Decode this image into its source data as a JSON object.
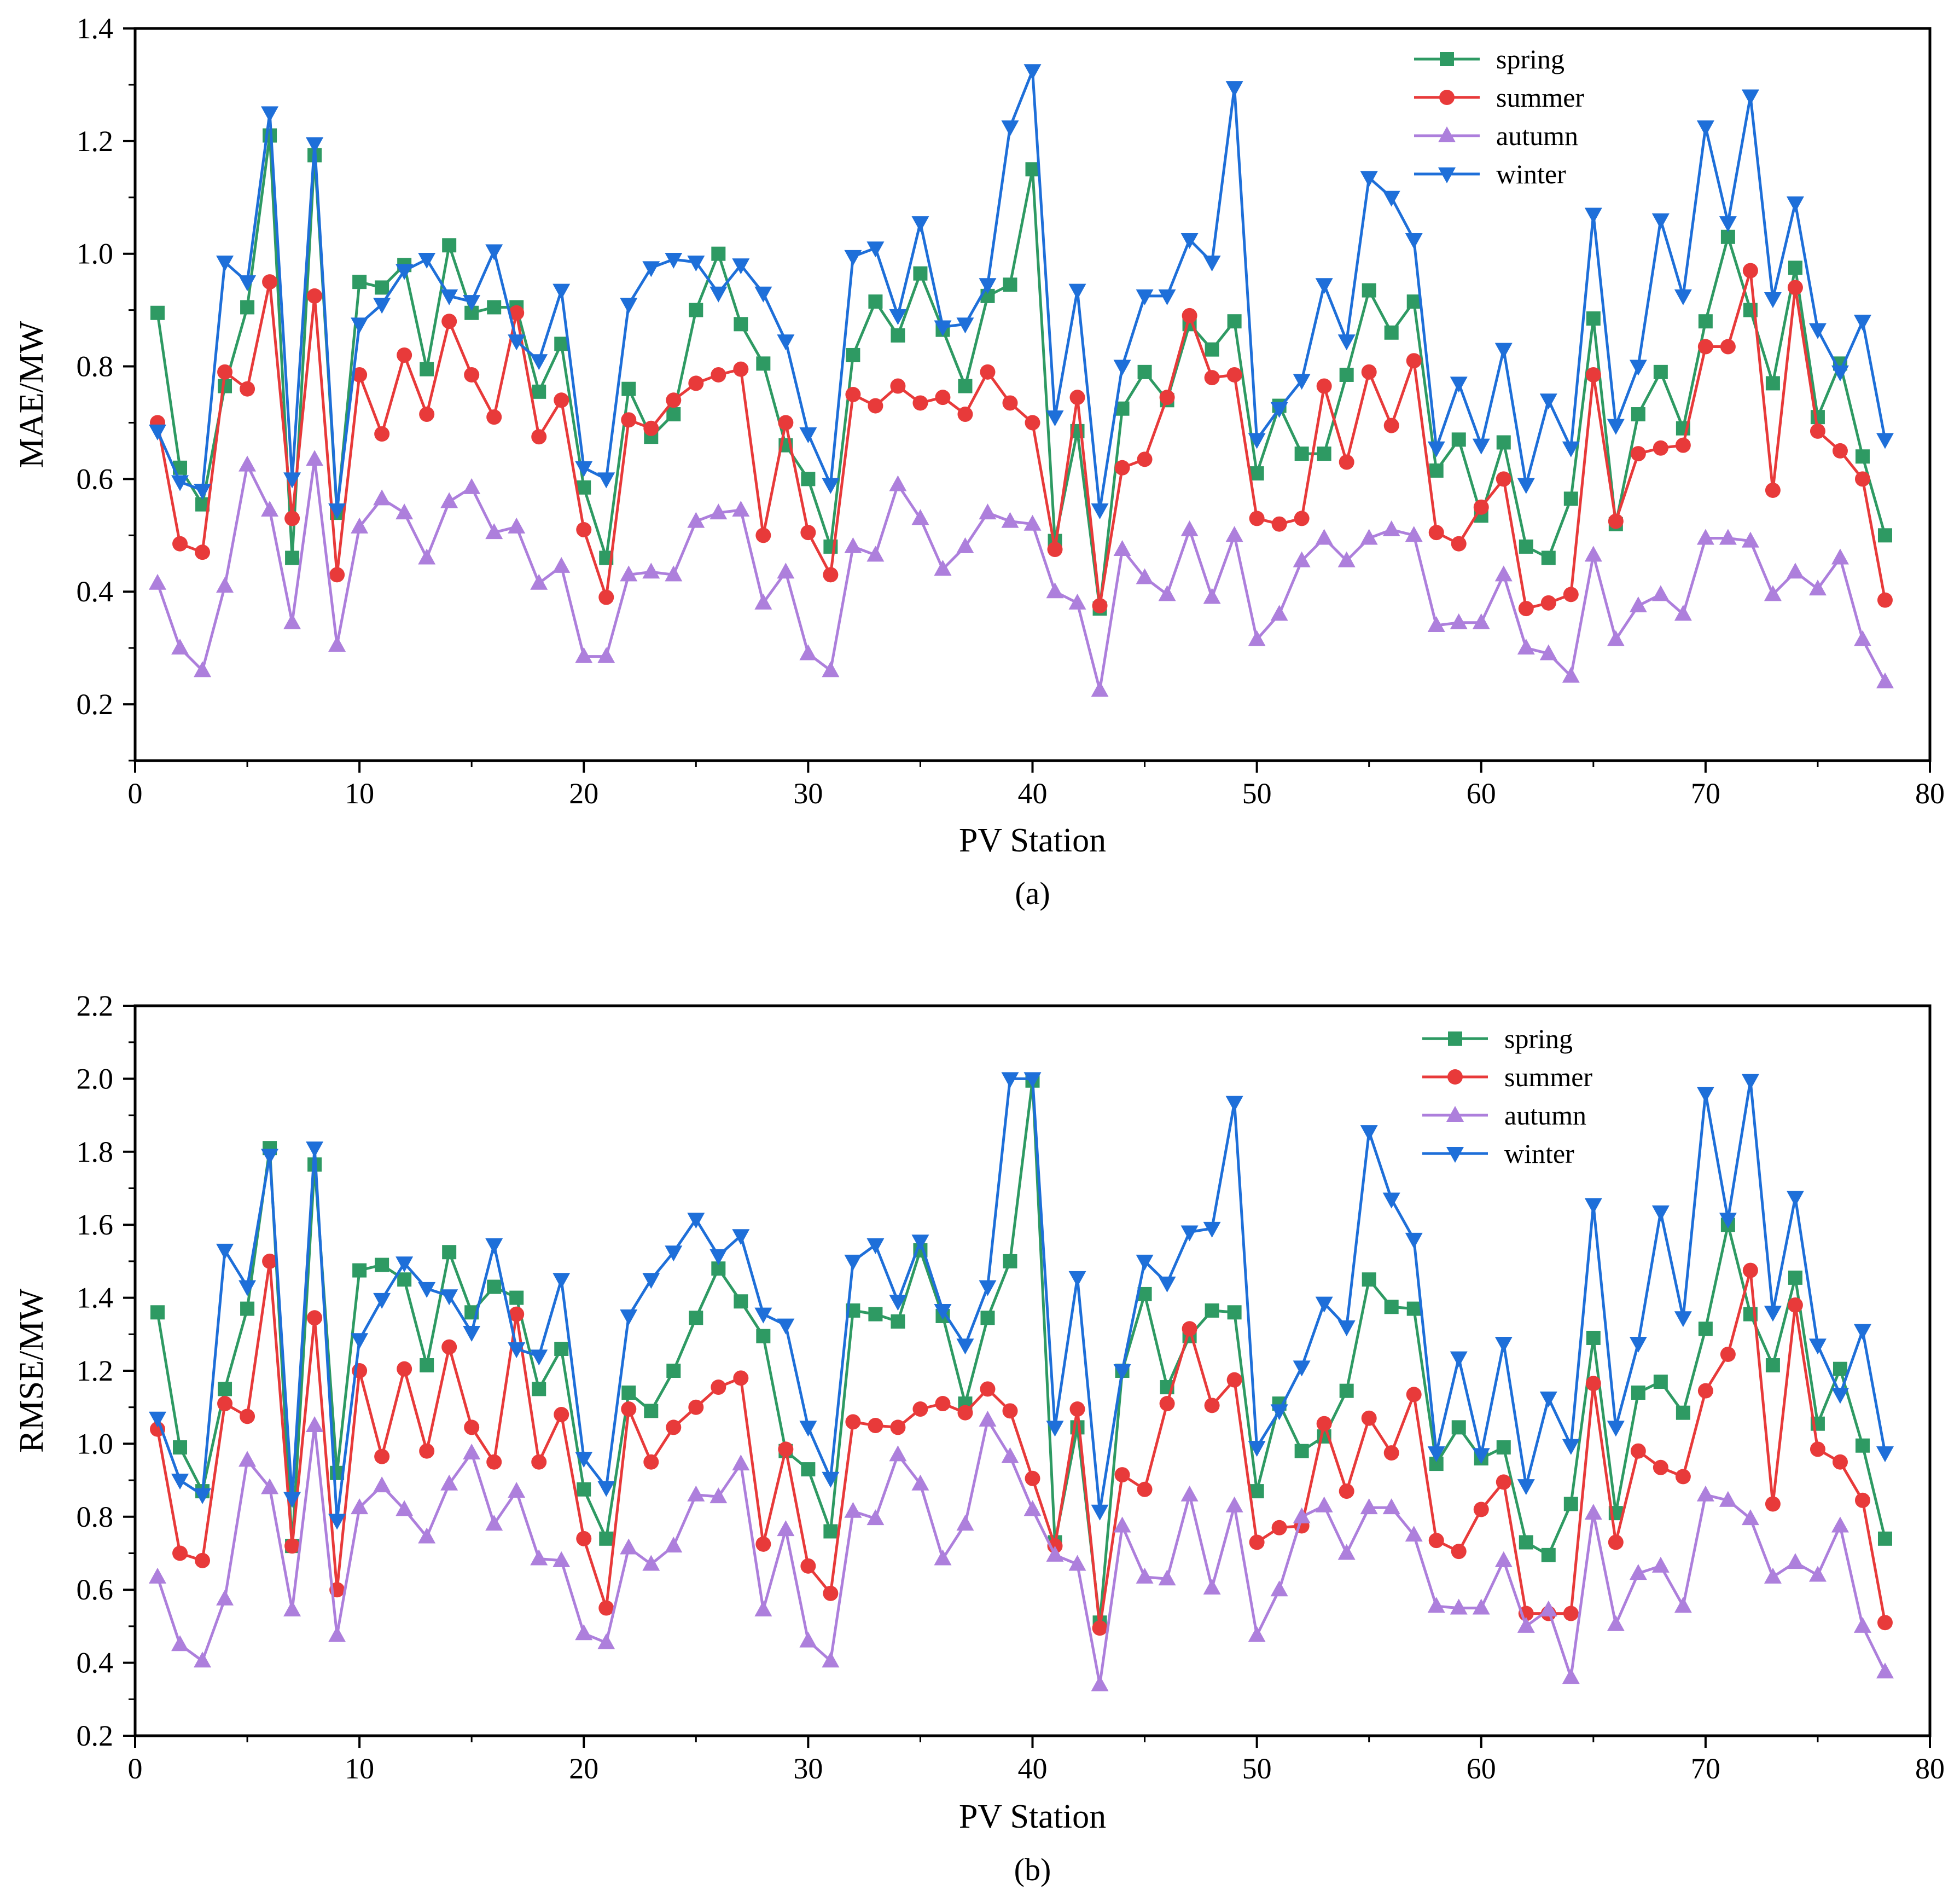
{
  "colors": {
    "spring": "#2e9a63",
    "summer": "#e83a3a",
    "autumn": "#ad7fdc",
    "winter": "#1e6fd9"
  },
  "chart_data": [
    {
      "id": "a",
      "type": "line",
      "caption": "(a)",
      "xlabel": "PV Station",
      "ylabel": "MAE/MW",
      "xlim": [
        0,
        80
      ],
      "ylim": [
        0.1,
        1.4
      ],
      "xticks": [
        0,
        10,
        20,
        30,
        40,
        50,
        60,
        70,
        80
      ],
      "yticks": [
        0.2,
        0.4,
        0.6,
        0.8,
        1.0,
        1.2,
        1.4
      ],
      "ytick_labels": [
        "0.2",
        "0.4",
        "0.6",
        "0.8",
        "1.0",
        "1.2",
        "1.4"
      ],
      "legend_position": "top-right",
      "series": [
        {
          "name": "spring",
          "marker": "square",
          "values": [
            0.895,
            0.62,
            0.555,
            0.765,
            0.905,
            1.21,
            0.46,
            1.175,
            0.54,
            0.95,
            0.94,
            0.98,
            0.795,
            1.015,
            0.895,
            0.905,
            0.905,
            0.755,
            0.84,
            0.585,
            0.46,
            0.76,
            0.675,
            0.715,
            0.9,
            1.0,
            0.875,
            0.805,
            0.66,
            0.6,
            0.48,
            0.82,
            0.915,
            0.855,
            0.965,
            0.865,
            0.765,
            0.925,
            0.945,
            1.15,
            0.49,
            0.685,
            0.37,
            0.725,
            0.79,
            0.74,
            0.875,
            0.83,
            0.88,
            0.61,
            0.73,
            0.645,
            0.645,
            0.785,
            0.935,
            0.86,
            0.915,
            0.615,
            0.67,
            0.535,
            0.665,
            0.48,
            0.46,
            0.565,
            0.885,
            0.52,
            0.715,
            0.79,
            0.69,
            0.88,
            1.03,
            0.9,
            0.77,
            0.975,
            0.71,
            0.805,
            0.64,
            0.5
          ]
        },
        {
          "name": "summer",
          "marker": "circle",
          "values": [
            0.7,
            0.485,
            0.47,
            0.79,
            0.76,
            0.95,
            0.53,
            0.925,
            0.43,
            0.785,
            0.68,
            0.82,
            0.715,
            0.88,
            0.785,
            0.71,
            0.895,
            0.675,
            0.74,
            0.51,
            0.39,
            0.705,
            0.69,
            0.74,
            0.77,
            0.785,
            0.795,
            0.5,
            0.7,
            0.505,
            0.43,
            0.75,
            0.73,
            0.765,
            0.735,
            0.745,
            0.715,
            0.79,
            0.735,
            0.7,
            0.475,
            0.745,
            0.375,
            0.62,
            0.635,
            0.745,
            0.89,
            0.78,
            0.785,
            0.53,
            0.52,
            0.53,
            0.765,
            0.63,
            0.79,
            0.695,
            0.81,
            0.505,
            0.485,
            0.55,
            0.6,
            0.37,
            0.38,
            0.395,
            0.785,
            0.525,
            0.645,
            0.655,
            0.66,
            0.835,
            0.835,
            0.97,
            0.58,
            0.94,
            0.685,
            0.65,
            0.6,
            0.385
          ]
        },
        {
          "name": "autumn",
          "marker": "triangle-up",
          "values": [
            0.415,
            0.3,
            0.26,
            0.41,
            0.625,
            0.545,
            0.345,
            0.635,
            0.305,
            0.515,
            0.565,
            0.54,
            0.46,
            0.56,
            0.585,
            0.505,
            0.515,
            0.415,
            0.445,
            0.285,
            0.285,
            0.43,
            0.435,
            0.43,
            0.525,
            0.54,
            0.545,
            0.38,
            0.435,
            0.29,
            0.26,
            0.48,
            0.465,
            0.59,
            0.53,
            0.44,
            0.48,
            0.54,
            0.525,
            0.52,
            0.4,
            0.38,
            0.225,
            0.475,
            0.425,
            0.395,
            0.51,
            0.39,
            0.5,
            0.315,
            0.36,
            0.455,
            0.495,
            0.455,
            0.495,
            0.51,
            0.5,
            0.34,
            0.345,
            0.345,
            0.43,
            0.3,
            0.29,
            0.25,
            0.465,
            0.315,
            0.375,
            0.395,
            0.36,
            0.495,
            0.495,
            0.49,
            0.395,
            0.435,
            0.405,
            0.46,
            0.315,
            0.24
          ]
        },
        {
          "name": "winter",
          "marker": "triangle-down",
          "values": [
            0.685,
            0.595,
            0.58,
            0.985,
            0.95,
            1.25,
            0.6,
            1.195,
            0.545,
            0.875,
            0.91,
            0.97,
            0.99,
            0.925,
            0.915,
            1.005,
            0.845,
            0.81,
            0.935,
            0.62,
            0.6,
            0.91,
            0.975,
            0.99,
            0.985,
            0.93,
            0.98,
            0.93,
            0.845,
            0.68,
            0.59,
            0.995,
            1.01,
            0.89,
            1.055,
            0.87,
            0.875,
            0.945,
            1.225,
            1.325,
            0.71,
            0.935,
            0.545,
            0.8,
            0.925,
            0.925,
            1.025,
            0.985,
            1.295,
            0.67,
            0.725,
            0.775,
            0.945,
            0.845,
            1.135,
            1.1,
            1.025,
            0.655,
            0.77,
            0.66,
            0.83,
            0.59,
            0.74,
            0.655,
            1.07,
            0.695,
            0.8,
            1.06,
            0.925,
            1.225,
            1.055,
            1.28,
            0.92,
            1.09,
            0.865,
            0.79,
            0.88,
            0.67
          ]
        }
      ]
    },
    {
      "id": "b",
      "type": "line",
      "caption": "(b)",
      "xlabel": "PV Station",
      "ylabel": "RMSE/MW",
      "xlim": [
        0,
        80
      ],
      "ylim": [
        0.2,
        2.2
      ],
      "xticks": [
        0,
        10,
        20,
        30,
        40,
        50,
        60,
        70,
        80
      ],
      "yticks": [
        0.2,
        0.4,
        0.6,
        0.8,
        1.0,
        1.2,
        1.4,
        1.6,
        1.8,
        2.0,
        2.2
      ],
      "ytick_labels": [
        "0.2",
        "0.4",
        "0.6",
        "0.8",
        "1.0",
        "1.2",
        "1.4",
        "1.6",
        "1.8",
        "2.0",
        "2.2"
      ],
      "legend_position": "top-right",
      "series": [
        {
          "name": "spring",
          "marker": "square",
          "values": [
            1.36,
            0.99,
            0.87,
            1.15,
            1.37,
            1.81,
            0.72,
            1.765,
            0.92,
            1.475,
            1.49,
            1.45,
            1.215,
            1.525,
            1.36,
            1.43,
            1.4,
            1.15,
            1.26,
            0.875,
            0.74,
            1.14,
            1.09,
            1.2,
            1.345,
            1.48,
            1.39,
            1.295,
            0.98,
            0.93,
            0.76,
            1.365,
            1.355,
            1.335,
            1.53,
            1.35,
            1.11,
            1.345,
            1.5,
            1.995,
            0.73,
            1.045,
            0.51,
            1.2,
            1.41,
            1.155,
            1.295,
            1.365,
            1.36,
            0.87,
            1.11,
            0.98,
            1.02,
            1.145,
            1.45,
            1.375,
            1.37,
            0.945,
            1.045,
            0.96,
            0.99,
            0.73,
            0.695,
            0.835,
            1.29,
            0.81,
            1.14,
            1.17,
            1.085,
            1.315,
            1.6,
            1.355,
            1.215,
            1.455,
            1.055,
            1.205,
            0.995,
            0.74
          ]
        },
        {
          "name": "summer",
          "marker": "circle",
          "values": [
            1.04,
            0.7,
            0.68,
            1.11,
            1.075,
            1.5,
            0.72,
            1.345,
            0.6,
            1.2,
            0.965,
            1.205,
            0.98,
            1.265,
            1.045,
            0.95,
            1.355,
            0.95,
            1.08,
            0.74,
            0.55,
            1.095,
            0.95,
            1.045,
            1.1,
            1.155,
            1.18,
            0.725,
            0.985,
            0.665,
            0.59,
            1.06,
            1.05,
            1.045,
            1.095,
            1.11,
            1.085,
            1.15,
            1.09,
            0.905,
            0.72,
            1.095,
            0.495,
            0.915,
            0.875,
            1.11,
            1.315,
            1.105,
            1.175,
            0.73,
            0.77,
            0.775,
            1.055,
            0.87,
            1.07,
            0.975,
            1.135,
            0.735,
            0.705,
            0.82,
            0.895,
            0.535,
            0.535,
            0.535,
            1.165,
            0.73,
            0.98,
            0.935,
            0.91,
            1.145,
            1.245,
            1.475,
            0.835,
            1.38,
            0.985,
            0.95,
            0.845,
            0.51
          ]
        },
        {
          "name": "autumn",
          "marker": "triangle-up",
          "values": [
            0.635,
            0.45,
            0.405,
            0.575,
            0.955,
            0.88,
            0.545,
            1.05,
            0.475,
            0.825,
            0.885,
            0.82,
            0.745,
            0.89,
            0.975,
            0.78,
            0.87,
            0.685,
            0.68,
            0.48,
            0.455,
            0.715,
            0.67,
            0.72,
            0.86,
            0.855,
            0.945,
            0.545,
            0.765,
            0.46,
            0.405,
            0.815,
            0.795,
            0.97,
            0.89,
            0.685,
            0.78,
            1.065,
            0.965,
            0.82,
            0.695,
            0.67,
            0.34,
            0.775,
            0.635,
            0.63,
            0.86,
            0.605,
            0.83,
            0.475,
            0.6,
            0.8,
            0.83,
            0.7,
            0.825,
            0.825,
            0.75,
            0.555,
            0.55,
            0.55,
            0.68,
            0.5,
            0.545,
            0.36,
            0.81,
            0.505,
            0.645,
            0.665,
            0.555,
            0.86,
            0.845,
            0.795,
            0.635,
            0.675,
            0.64,
            0.775,
            0.5,
            0.375
          ]
        },
        {
          "name": "winter",
          "marker": "triangle-down",
          "values": [
            1.07,
            0.9,
            0.86,
            1.53,
            1.43,
            1.79,
            0.85,
            1.81,
            0.79,
            1.285,
            1.395,
            1.495,
            1.425,
            1.405,
            1.305,
            1.545,
            1.26,
            1.24,
            1.45,
            0.96,
            0.88,
            1.35,
            1.45,
            1.525,
            1.615,
            1.515,
            1.57,
            1.355,
            1.325,
            1.045,
            0.905,
            1.5,
            1.545,
            1.39,
            1.555,
            1.365,
            1.27,
            1.43,
            2.0,
            2.0,
            1.045,
            1.455,
            0.815,
            1.2,
            1.5,
            1.44,
            1.58,
            1.59,
            1.935,
            0.99,
            1.09,
            1.21,
            1.385,
            1.32,
            1.855,
            1.67,
            1.56,
            0.975,
            1.235,
            0.97,
            1.275,
            0.885,
            1.125,
            0.995,
            1.655,
            1.045,
            1.275,
            1.635,
            1.345,
            1.96,
            1.615,
            1.995,
            1.36,
            1.675,
            1.27,
            1.135,
            1.31,
            0.975
          ]
        }
      ]
    }
  ]
}
